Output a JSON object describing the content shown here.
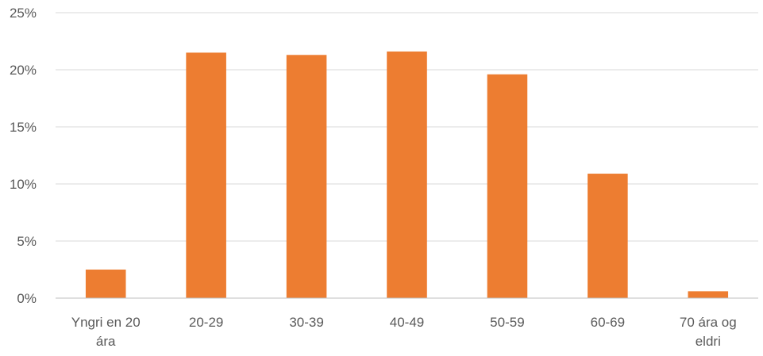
{
  "chart_data": {
    "type": "bar",
    "categories": [
      [
        "Yngri en 20",
        "ára"
      ],
      [
        "20-29"
      ],
      [
        "30-39"
      ],
      [
        "40-49"
      ],
      [
        "50-59"
      ],
      [
        "60-69"
      ],
      [
        "70 ára og",
        "eldri"
      ]
    ],
    "values": [
      2.5,
      21.5,
      21.3,
      21.6,
      19.6,
      10.9,
      0.6
    ],
    "y_ticks": [
      {
        "value": 0,
        "label": "0%"
      },
      {
        "value": 5,
        "label": "5%"
      },
      {
        "value": 10,
        "label": "10%"
      },
      {
        "value": 15,
        "label": "15%"
      },
      {
        "value": 20,
        "label": "20%"
      },
      {
        "value": 25,
        "label": "25%"
      }
    ],
    "ylim": [
      0,
      25
    ],
    "grid": true,
    "legend": "none",
    "bar_color": "#ED7D31",
    "title": "",
    "xlabel": "",
    "ylabel": ""
  }
}
